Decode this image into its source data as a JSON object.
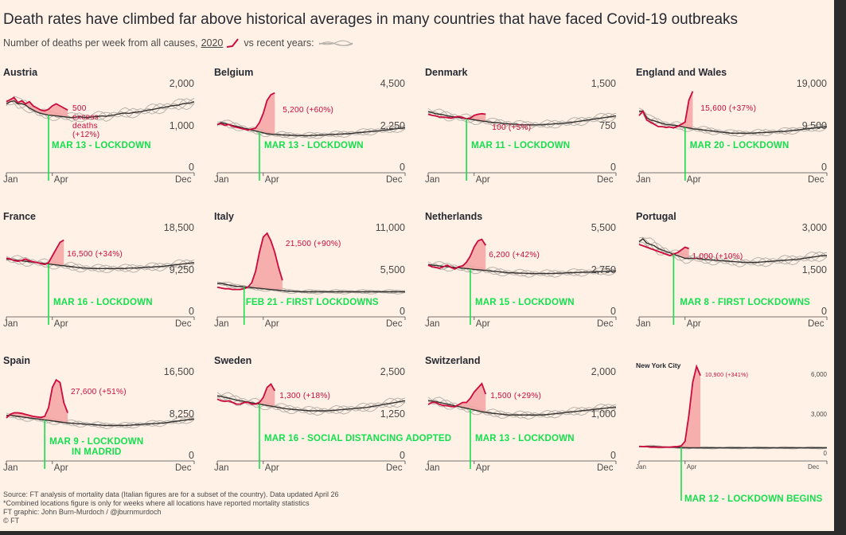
{
  "title": "Death rates have climbed far above historical averages in many countries that have faced Covid-19 outbreaks",
  "subtitle": {
    "prefix": "Number of deaths per week from all causes,",
    "year": "2020",
    "suffix": "vs recent years:"
  },
  "colors": {
    "current": "#cc0a3c",
    "fill": "#f5a3a3",
    "history": "#b3aea8",
    "average": "#33302e",
    "lockdown": "#13e04d",
    "background": "#fff1e5"
  },
  "footer": {
    "source": "Source: FT analysis of mortality data (Italian figures are for a subset of the country). Data updated April 26",
    "note": "*Combined locations figure is only for weeks where all locations have reported mortality statistics",
    "credit": "FT graphic: John Burn-Murdoch / @jburnmurdoch",
    "copyright": "© FT"
  },
  "chart_data": [
    {
      "type": "line",
      "name": "Austria",
      "ylim": [
        0,
        2000
      ],
      "yticks": [
        "0",
        "1,000",
        "2,000"
      ],
      "xticks": [
        "Jan",
        "Apr",
        "Dec"
      ],
      "lockdown_week": 11,
      "lockdown_label": "MAR 13 - LOCKDOWN",
      "excess_label": "500\nexcess\ndeaths\n(+12%)",
      "current": [
        1700,
        1750,
        1800,
        1680,
        1720,
        1650,
        1700,
        1600,
        1550,
        1500,
        1480,
        1520,
        1600,
        1650,
        1600,
        1550,
        1500
      ],
      "average": [
        1650,
        1700,
        1720,
        1650,
        1650,
        1620,
        1550,
        1500,
        1450,
        1420,
        1400,
        1380,
        1370,
        1360,
        1350,
        1340,
        1330,
        1320,
        1330,
        1340,
        1330,
        1320,
        1330,
        1340,
        1350,
        1360,
        1350,
        1370,
        1380,
        1400,
        1420,
        1430,
        1420,
        1440,
        1450,
        1460,
        1480,
        1500,
        1510,
        1530,
        1550,
        1560,
        1580,
        1600,
        1610,
        1620,
        1650,
        1660,
        1670,
        1700
      ]
    },
    {
      "type": "line",
      "name": "Belgium",
      "ylim": [
        0,
        4500
      ],
      "yticks": [
        "0",
        "2,250",
        "4,500"
      ],
      "xticks": [
        "Jan",
        "Apr",
        "Dec"
      ],
      "lockdown_week": 11,
      "lockdown_label": "MAR 13 - LOCKDOWN",
      "excess_label": "5,200 (+60%)",
      "current": [
        2600,
        2650,
        2550,
        2600,
        2500,
        2450,
        2400,
        2350,
        2300,
        2350,
        2400,
        2700,
        3200,
        3900,
        4200,
        4300
      ],
      "average": [
        2600,
        2700,
        2650,
        2600,
        2550,
        2500,
        2450,
        2400,
        2350,
        2300,
        2250,
        2200,
        2150,
        2100,
        2080,
        2060,
        2050,
        2040,
        2030,
        2020,
        2010,
        2000,
        2000,
        1990,
        2000,
        2010,
        2020,
        2030,
        2040,
        2050,
        2060,
        2070,
        2080,
        2090,
        2100,
        2120,
        2140,
        2160,
        2180,
        2200,
        2220,
        2240,
        2260,
        2280,
        2300,
        2320,
        2350,
        2380,
        2400,
        2420
      ]
    },
    {
      "type": "line",
      "name": "Denmark",
      "ylim": [
        0,
        1500
      ],
      "yticks": [
        "0",
        "750",
        "1,500"
      ],
      "xticks": [
        "Jan",
        "Apr",
        "Dec"
      ],
      "lockdown_week": 10,
      "lockdown_label": "MAR 11 - LOCKDOWN",
      "excess_label": "100 (+5%)",
      "current": [
        1050,
        1030,
        1020,
        1000,
        1000,
        990,
        980,
        1000,
        1010,
        990,
        970,
        980,
        1030,
        1050,
        1060,
        1050
      ],
      "average": [
        1100,
        1080,
        1060,
        1050,
        1040,
        1020,
        1010,
        1000,
        990,
        980,
        970,
        960,
        950,
        940,
        930,
        920,
        910,
        900,
        900,
        890,
        880,
        880,
        870,
        870,
        860,
        860,
        860,
        860,
        860,
        860,
        860,
        870,
        870,
        880,
        880,
        890,
        890,
        900,
        910,
        920,
        930,
        940,
        950,
        960,
        970,
        980,
        990,
        1000,
        1010,
        1020
      ]
    },
    {
      "type": "line",
      "name": "England and Wales",
      "ylim": [
        0,
        19000
      ],
      "yticks": [
        "0",
        "9,500",
        "19,000"
      ],
      "xticks": [
        "Jan",
        "Apr",
        "Dec"
      ],
      "lockdown_week": 12,
      "lockdown_label": "MAR 20 - LOCKDOWN",
      "excess_label": "15,600 (+37%)",
      "current": [
        13000,
        14000,
        12000,
        11500,
        11000,
        10500,
        10500,
        10300,
        10400,
        10200,
        10500,
        11000,
        11500,
        16500,
        18500
      ],
      "average": [
        14000,
        14000,
        12500,
        12000,
        11800,
        11500,
        11200,
        11000,
        10900,
        10800,
        10700,
        10500,
        10300,
        10200,
        10000,
        9900,
        9800,
        9700,
        9600,
        9500,
        9400,
        9300,
        9200,
        9100,
        9000,
        9000,
        9000,
        9000,
        9000,
        9000,
        9000,
        9100,
        9100,
        9200,
        9200,
        9300,
        9300,
        9400,
        9400,
        9500,
        9600,
        9700,
        9800,
        9900,
        10000,
        10100,
        10200,
        10300,
        10400,
        10500
      ]
    },
    {
      "type": "line",
      "name": "France",
      "ylim": [
        0,
        18500
      ],
      "yticks": [
        "0",
        "9,250",
        "18,500"
      ],
      "xticks": [
        "Jan",
        "Apr",
        "Dec"
      ],
      "lockdown_week": 11,
      "lockdown_label": "MAR 16 - LOCKDOWN",
      "excess_label": "16,500 (+34%)",
      "current": [
        13000,
        12800,
        12500,
        12300,
        12500,
        12800,
        12400,
        12200,
        12000,
        11800,
        11600,
        12000,
        13500,
        15000,
        16500,
        17000
      ],
      "average": [
        12800,
        12700,
        12600,
        12500,
        12400,
        12300,
        12200,
        12100,
        12000,
        11900,
        11800,
        11700,
        11600,
        11500,
        11400,
        11300,
        11200,
        11100,
        11000,
        10900,
        10800,
        10800,
        10700,
        10700,
        10700,
        10700,
        10700,
        10700,
        10700,
        10700,
        10700,
        10700,
        10800,
        10800,
        10800,
        10900,
        10900,
        11000,
        11000,
        11100,
        11100,
        11200,
        11300,
        11400,
        11500,
        11600,
        11700,
        11800,
        11900,
        12000
      ]
    },
    {
      "type": "line",
      "name": "Italy",
      "ylim": [
        0,
        11000
      ],
      "yticks": [
        "0",
        "5,500",
        "11,000"
      ],
      "xticks": [
        "Jan",
        "Apr",
        "Dec"
      ],
      "lockdown_week": 7,
      "lockdown_label": "FEB 21 - FIRST LOCKDOWNS",
      "excess_label": "21,500 (+90%)",
      "current": [
        3900,
        3800,
        3700,
        3700,
        3600,
        3600,
        3600,
        3700,
        3900,
        4500,
        6000,
        8500,
        10500,
        11000,
        10000,
        8500,
        6500,
        4800
      ],
      "average": [
        4400,
        4400,
        4300,
        4200,
        4100,
        4000,
        4000,
        3950,
        3900,
        3850,
        3800,
        3750,
        3700,
        3650,
        3600,
        3550,
        3500,
        3450,
        3400,
        3380,
        3350,
        3330,
        3300,
        3300,
        3300,
        3300,
        3300,
        3300,
        3300,
        3300,
        3300,
        3300,
        3300,
        3300,
        3300,
        3300,
        3300,
        3300,
        3300,
        3300,
        3300,
        3300,
        3300,
        3300,
        3300,
        3300,
        3300,
        3300,
        3300,
        3300
      ]
    },
    {
      "type": "line",
      "name": "Netherlands",
      "ylim": [
        0,
        5500
      ],
      "yticks": [
        "0",
        "2,750",
        "5,500"
      ],
      "xticks": [
        "Jan",
        "Apr",
        "Dec"
      ],
      "lockdown_week": 11,
      "lockdown_label": "MAR 15 - LOCKDOWN",
      "excess_label": "6,200 (+42%)",
      "current": [
        3400,
        3300,
        3250,
        3200,
        3300,
        3400,
        3250,
        3150,
        3300,
        3350,
        3600,
        4000,
        4600,
        5000,
        5100,
        4700
      ],
      "average": [
        3450,
        3400,
        3380,
        3350,
        3320,
        3300,
        3280,
        3250,
        3230,
        3200,
        3180,
        3150,
        3120,
        3100,
        3080,
        3050,
        3030,
        3000,
        2980,
        2950,
        2930,
        2900,
        2900,
        2880,
        2880,
        2870,
        2860,
        2850,
        2850,
        2850,
        2850,
        2850,
        2850,
        2860,
        2870,
        2880,
        2890,
        2900,
        2910,
        2920,
        2930,
        2940,
        2950,
        2960,
        2970,
        2980,
        2990,
        3000,
        3010,
        3020
      ]
    },
    {
      "type": "line",
      "name": "Portugal",
      "ylim": [
        0,
        3000
      ],
      "yticks": [
        "0",
        "1,500",
        "3,000"
      ],
      "xticks": [
        "Jan",
        "Apr",
        "Dec"
      ],
      "lockdown_week": 9,
      "lockdown_label": "MAR 8 - FIRST LOCKDOWNS",
      "excess_label": "1,000 (+10%)",
      "current": [
        2600,
        2550,
        2500,
        2450,
        2400,
        2350,
        2300,
        2250,
        2200,
        2250,
        2300,
        2400,
        2500,
        2450
      ],
      "average": [
        2700,
        2800,
        2650,
        2600,
        2550,
        2450,
        2400,
        2350,
        2300,
        2250,
        2200,
        2150,
        2100,
        2100,
        2100,
        2100,
        2080,
        2060,
        2050,
        2040,
        2030,
        2020,
        2010,
        2000,
        1990,
        1980,
        1970,
        1960,
        1960,
        1950,
        1950,
        1960,
        1970,
        1980,
        1990,
        2000,
        2010,
        2020,
        2030,
        2040,
        2050,
        2060,
        2080,
        2100,
        2120,
        2140,
        2160,
        2180,
        2200,
        2200
      ]
    },
    {
      "type": "line",
      "name": "Spain",
      "ylim": [
        0,
        16500
      ],
      "yticks": [
        "0",
        "8,250",
        "16,500"
      ],
      "xticks": [
        "Jan",
        "Apr",
        "Dec"
      ],
      "lockdown_week": 10,
      "lockdown_label": "MAR 9 - LOCKDOWN\nIN MADRID",
      "excess_label": "27,600 (+51%)",
      "current": [
        8500,
        9200,
        9500,
        9500,
        9400,
        9200,
        9000,
        8800,
        8700,
        8600,
        8800,
        10500,
        14500,
        16000,
        15500,
        11500,
        9500
      ],
      "average": [
        9000,
        9000,
        8900,
        8800,
        8700,
        8600,
        8500,
        8400,
        8300,
        8200,
        8100,
        8000,
        7900,
        7800,
        7700,
        7600,
        7500,
        7450,
        7400,
        7350,
        7300,
        7250,
        7200,
        7150,
        7100,
        7050,
        7000,
        7000,
        7000,
        7000,
        7000,
        7000,
        7050,
        7100,
        7150,
        7200,
        7250,
        7300,
        7350,
        7400,
        7450,
        7500,
        7600,
        7700,
        7800,
        7900,
        8000,
        8100,
        8200,
        8300
      ]
    },
    {
      "type": "line",
      "name": "Sweden",
      "ylim": [
        0,
        2500
      ],
      "yticks": [
        "0",
        "1,250",
        "2,500"
      ],
      "xticks": [
        "Jan",
        "Apr",
        "Dec"
      ],
      "lockdown_week": 11,
      "lockdown_label": "MAR 16 - SOCIAL DISTANCING ADOPTED",
      "excess_label": "1,300 (+18%)",
      "current": [
        1850,
        1800,
        1780,
        1800,
        1750,
        1700,
        1700,
        1750,
        1750,
        1700,
        1700,
        1750,
        1900,
        2200,
        2300,
        2100
      ],
      "average": [
        1950,
        1930,
        1900,
        1880,
        1850,
        1820,
        1800,
        1780,
        1760,
        1740,
        1720,
        1700,
        1680,
        1660,
        1640,
        1620,
        1600,
        1580,
        1560,
        1550,
        1540,
        1530,
        1520,
        1510,
        1500,
        1500,
        1500,
        1500,
        1500,
        1500,
        1510,
        1520,
        1530,
        1540,
        1550,
        1560,
        1570,
        1580,
        1590,
        1600,
        1620,
        1640,
        1660,
        1680,
        1700,
        1720,
        1740,
        1760,
        1780,
        1800
      ]
    },
    {
      "type": "line",
      "name": "Switzerland",
      "ylim": [
        0,
        2000
      ],
      "yticks": [
        "0",
        "1,000",
        "2,000"
      ],
      "xticks": [
        "Jan",
        "Apr",
        "Dec"
      ],
      "lockdown_week": 11,
      "lockdown_label": "MAR 13 - LOCKDOWN",
      "excess_label": "1,500 (+29%)",
      "current": [
        1350,
        1400,
        1400,
        1350,
        1330,
        1320,
        1300,
        1300,
        1350,
        1400,
        1400,
        1500,
        1650,
        1750,
        1850,
        1600
      ],
      "average": [
        1450,
        1430,
        1420,
        1400,
        1380,
        1360,
        1340,
        1320,
        1300,
        1280,
        1260,
        1240,
        1220,
        1200,
        1180,
        1160,
        1150,
        1140,
        1130,
        1120,
        1110,
        1100,
        1100,
        1100,
        1100,
        1100,
        1100,
        1100,
        1100,
        1100,
        1100,
        1110,
        1120,
        1130,
        1140,
        1150,
        1160,
        1170,
        1180,
        1190,
        1200,
        1210,
        1220,
        1230,
        1240,
        1250,
        1260,
        1270,
        1280,
        1290
      ]
    },
    {
      "type": "line",
      "name": "New York City",
      "ylim": [
        0,
        6000
      ],
      "yticks": [
        "0",
        "3,000",
        "6,000"
      ],
      "xticks": [
        "Jan",
        "Apr",
        "Dec"
      ],
      "lockdown_week": 11,
      "lockdown_label": "MAR 12 - LOCKDOWN BEGINS",
      "excess_label": "10,900 (+341%)",
      "current": [
        1100,
        1100,
        1100,
        1050,
        1050,
        1050,
        1050,
        1050,
        1050,
        1080,
        1100,
        1150,
        1500,
        3500,
        6000,
        7200,
        6500
      ],
      "average": [
        1100,
        1100,
        1100,
        1100,
        1100,
        1080,
        1060,
        1050,
        1050,
        1040,
        1030,
        1020,
        1010,
        1000,
        1000,
        1000,
        1000,
        1000,
        1000,
        1000,
        1000,
        1000,
        1000,
        1000,
        1000,
        1000,
        1000,
        1000,
        1000,
        1000,
        1000,
        1000,
        1000,
        1000,
        1000,
        1000,
        1000,
        1000,
        1000,
        1000,
        1000,
        1000,
        1000,
        1000,
        1000,
        1000,
        1000,
        1000,
        1000,
        1000
      ]
    }
  ]
}
